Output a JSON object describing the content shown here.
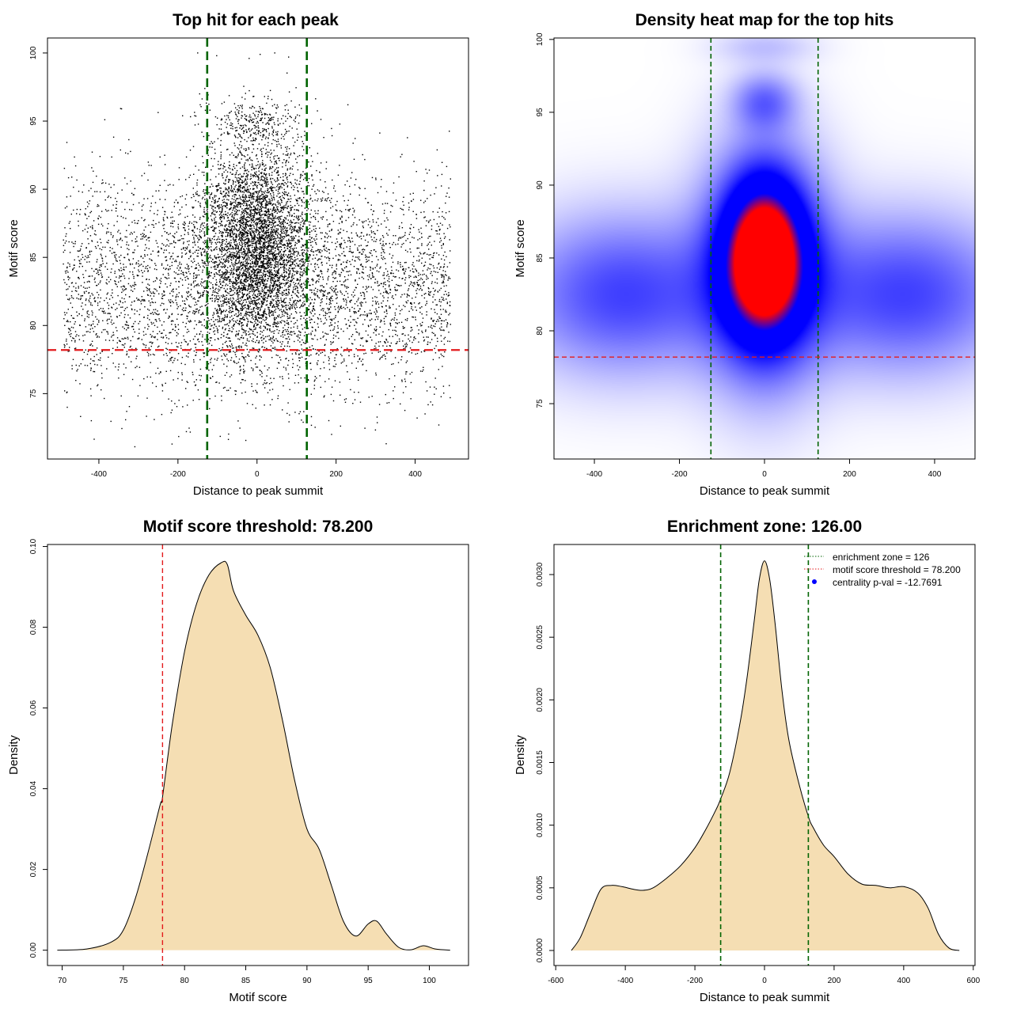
{
  "colors": {
    "enrichment_line": "#006400",
    "threshold_line": "#e31a1c",
    "density_fill": "#f5deb3",
    "scatter_point": "#000000",
    "heat_low": "#ffffff",
    "heat_mid": "#0000ff",
    "heat_high": "#ff0000"
  },
  "chart_data": [
    {
      "id": "scatter",
      "type": "scatter",
      "title": "Top hit for each peak",
      "xlabel": "Distance to peak summit",
      "ylabel": "Motif score",
      "xlim": [
        -530,
        535
      ],
      "ylim": [
        70.2,
        101.1
      ],
      "xticks": [
        -400,
        -200,
        0,
        200,
        400
      ],
      "yticks": [
        75,
        80,
        85,
        90,
        95,
        100
      ],
      "vlines": [
        -126,
        126
      ],
      "hline": 78.2,
      "point_summary": "about 9000 points, broad cloud over x from -490 to 490 and y from 74 to 96, dense core near x=0, y=83-92; a sparse row of points near y=99.5-100",
      "points_sample": [
        [
          -150,
          100
        ],
        [
          -102,
          99.8
        ],
        [
          -20,
          99.6
        ],
        [
          8,
          99.9
        ],
        [
          45,
          100
        ],
        [
          80,
          99.7
        ],
        [
          510,
          99.5
        ],
        [
          -215,
          71.3
        ],
        [
          -260,
          73.1
        ],
        [
          310,
          74.2
        ],
        [
          -480,
          74.0
        ],
        [
          -385,
          95.1
        ],
        [
          230,
          96.2
        ],
        [
          -10,
          96.8
        ],
        [
          15,
          95.9
        ],
        [
          98,
          95.3
        ],
        [
          460,
          72.7
        ],
        [
          -145,
          97.0
        ]
      ]
    },
    {
      "id": "heatmap",
      "type": "heatmap",
      "title": "Density heat map for the top hits",
      "xlabel": "Distance to peak summit",
      "ylabel": "Motif score",
      "xlim": [
        -495,
        495
      ],
      "ylim": [
        71.2,
        100.1
      ],
      "xticks": [
        -400,
        -200,
        0,
        200,
        400
      ],
      "yticks": [
        75,
        80,
        85,
        90,
        95,
        100
      ],
      "vlines": [
        -126,
        126
      ],
      "hline": 78.2,
      "blobs": [
        {
          "x": 0,
          "y": 85,
          "sx": 58,
          "sy": 3.2,
          "w": 1.0
        },
        {
          "x": 0,
          "y": 84.5,
          "sx": 95,
          "sy": 5.2,
          "w": 0.55
        },
        {
          "x": -330,
          "y": 82.5,
          "sx": 170,
          "sy": 3.6,
          "w": 0.32
        },
        {
          "x": 330,
          "y": 82.5,
          "sx": 170,
          "sy": 3.6,
          "w": 0.32
        },
        {
          "x": 0,
          "y": 95.7,
          "sx": 50,
          "sy": 1.3,
          "w": 0.22
        },
        {
          "x": 0,
          "y": 99.5,
          "sx": 80,
          "sy": 0.8,
          "w": 0.08
        }
      ],
      "color_stops": [
        0,
        0.45,
        0.75,
        1.0
      ]
    },
    {
      "id": "score-density",
      "type": "area",
      "title": "Motif score threshold: 78.200",
      "xlabel": "Motif score",
      "ylabel": "Density",
      "xlim": [
        68.8,
        103.2
      ],
      "ylim": [
        -0.0038,
        0.1005
      ],
      "xticks": [
        70,
        75,
        80,
        85,
        90,
        95,
        100
      ],
      "yticks": [
        0.0,
        0.02,
        0.04,
        0.06,
        0.08,
        0.1
      ],
      "ytick_labels": [
        "0.00",
        "0.02",
        "0.04",
        "0.06",
        "0.08",
        "0.10"
      ],
      "vline": 78.2,
      "x": [
        69.6,
        72.0,
        74.0,
        75.0,
        76.0,
        77.0,
        78.0,
        78.2,
        79.0,
        80.0,
        81.0,
        82.0,
        83.0,
        83.5,
        84.0,
        85.0,
        86.0,
        87.0,
        88.0,
        89.0,
        90.0,
        91.0,
        92.0,
        93.0,
        94.0,
        95.0,
        95.7,
        96.5,
        97.5,
        98.5,
        99.5,
        100.5,
        101.7
      ],
      "y": [
        0.0,
        0.0003,
        0.002,
        0.005,
        0.013,
        0.024,
        0.036,
        0.038,
        0.056,
        0.074,
        0.086,
        0.093,
        0.096,
        0.0955,
        0.089,
        0.083,
        0.078,
        0.07,
        0.057,
        0.042,
        0.03,
        0.025,
        0.016,
        0.007,
        0.0035,
        0.0065,
        0.0072,
        0.004,
        0.0007,
        0.0001,
        0.0011,
        0.0003,
        0.0
      ]
    },
    {
      "id": "distance-density",
      "type": "area",
      "title": "Enrichment zone: 126.00",
      "xlabel": "Distance to peak summit",
      "ylabel": "Density",
      "xlim": [
        -605,
        605
      ],
      "ylim": [
        -0.00012,
        0.00324
      ],
      "xticks": [
        -600,
        -400,
        -200,
        0,
        200,
        400,
        600
      ],
      "yticks": [
        0.0,
        0.0005,
        0.001,
        0.0015,
        0.002,
        0.0025,
        0.003
      ],
      "ytick_labels": [
        "0.0000",
        "0.0005",
        "0.0010",
        "0.0015",
        "0.0020",
        "0.0025",
        "0.0030"
      ],
      "vlines": [
        -126,
        126
      ],
      "x": [
        -555,
        -530,
        -500,
        -470,
        -440,
        -410,
        -380,
        -350,
        -320,
        -280,
        -240,
        -200,
        -170,
        -140,
        -126,
        -100,
        -70,
        -50,
        -30,
        -15,
        0,
        15,
        30,
        50,
        70,
        100,
        126,
        140,
        170,
        200,
        240,
        280,
        320,
        360,
        400,
        440,
        470,
        500,
        530,
        560
      ],
      "y": [
        0.0,
        0.0001,
        0.0003,
        0.00049,
        0.00052,
        0.00051,
        0.00049,
        0.00048,
        0.0005,
        0.00058,
        0.00068,
        0.00082,
        0.00096,
        0.00112,
        0.00121,
        0.00142,
        0.00182,
        0.00218,
        0.00262,
        0.00296,
        0.00311,
        0.00296,
        0.00262,
        0.00208,
        0.00168,
        0.00132,
        0.00107,
        0.00098,
        0.00084,
        0.00075,
        0.00061,
        0.00053,
        0.00052,
        0.0005,
        0.00051,
        0.00046,
        0.00034,
        0.00013,
        2e-05,
        0.0
      ],
      "legend": {
        "position": "top-right",
        "items": [
          {
            "label": "enrichment zone = 126",
            "kind": "dotted-line",
            "color": "#006400"
          },
          {
            "label": "motif score threshold = 78.200",
            "kind": "dotted-line",
            "color": "#e31a1c"
          },
          {
            "label": "centrality p-val = -12.7691",
            "kind": "dot",
            "color": "#0000ff"
          }
        ]
      }
    }
  ]
}
